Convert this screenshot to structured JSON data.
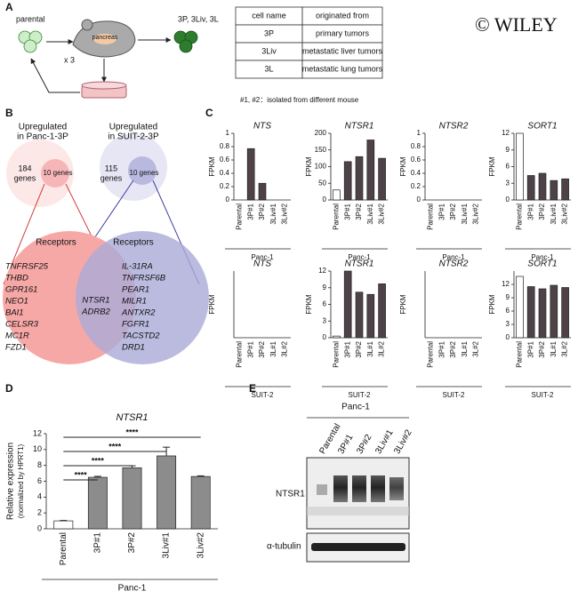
{
  "watermark": "© WILEY",
  "panel_a": {
    "label": "A",
    "parental": "parental",
    "organ": "pancreas",
    "repeat": "x 3",
    "derived": "3P, 3Liv, 3L",
    "table": {
      "header": [
        "cell name",
        "originated from"
      ],
      "rows": [
        [
          "3P",
          "primary tumors"
        ],
        [
          "3Liv",
          "metastatic liver tumors"
        ],
        [
          "3L",
          "metastatic lung tumors"
        ]
      ]
    },
    "note": "#1, #2：isolated from different mouse"
  },
  "panel_b": {
    "label": "B",
    "left": {
      "heading": [
        "Upregulated",
        "in Panc-1-3P"
      ],
      "total": [
        "184",
        "genes"
      ],
      "subset": "10 genes",
      "receptors": "Receptors",
      "genes": [
        "TNFRSF25",
        "THBD",
        "GPR161",
        "NEO1",
        "BAI1",
        "CELSR3",
        "MC1R",
        "FZD1"
      ]
    },
    "right": {
      "heading": [
        "Upregulated",
        "in SUIT-2-3P"
      ],
      "total": [
        "115",
        "genes"
      ],
      "subset": "10 genes",
      "receptors": "Receptors",
      "genes": [
        "IL-31RA",
        "TNFRSF6B",
        "PEAR1",
        "MILR1",
        "ANTXR2",
        "FGFR1",
        "TACSTD2",
        "DRD1"
      ]
    },
    "shared": [
      "NTSR1",
      "ADRB2"
    ]
  },
  "panel_c": {
    "label": "C"
  },
  "panel_d": {
    "label": "D"
  },
  "chart_data": [
    {
      "type": "bar",
      "title": "NTS",
      "y_label": "FPKM",
      "group": "Panc-1",
      "categories": [
        "Parental",
        "3P#1",
        "3P#2",
        "3Liv#1",
        "3Liv#2"
      ],
      "values": [
        0,
        0.77,
        0.25,
        0,
        0
      ],
      "colors": [
        "#ffffff",
        "#4e4248",
        "#4e4248",
        "#4e4248",
        "#4e4248"
      ],
      "ylim": [
        0,
        1
      ],
      "yticks": [
        0,
        0.2,
        0.4,
        0.6,
        0.8,
        1
      ]
    },
    {
      "type": "bar",
      "title": "NTSR1",
      "y_label": "FPKM",
      "group": "Panc-1",
      "categories": [
        "Parental",
        "3P#1",
        "3P#2",
        "3Liv#1",
        "3Liv#2"
      ],
      "values": [
        30,
        115,
        130,
        180,
        125
      ],
      "colors": [
        "#ffffff",
        "#4e4248",
        "#4e4248",
        "#4e4248",
        "#4e4248"
      ],
      "ylim": [
        0,
        200
      ],
      "yticks": [
        0,
        50,
        100,
        150,
        200
      ]
    },
    {
      "type": "bar",
      "title": "NTSR2",
      "y_label": "FPKM",
      "group": "Panc-1",
      "categories": [
        "Parental",
        "3P#1",
        "3P#2",
        "3Liv#1",
        "3Liv#2"
      ],
      "values": [
        0,
        0,
        0,
        0,
        0
      ],
      "colors": [
        "#ffffff",
        "#4e4248",
        "#4e4248",
        "#4e4248",
        "#4e4248"
      ],
      "ylim": [
        0,
        1
      ],
      "yticks": [
        0,
        0.2,
        0.4,
        0.6,
        0.8,
        1
      ]
    },
    {
      "type": "bar",
      "title": "SORT1",
      "y_label": "FPKM",
      "group": "Panc-1",
      "categories": [
        "Parental",
        "3P#1",
        "3P#2",
        "3Liv#1",
        "3Liv#2"
      ],
      "values": [
        12,
        4.4,
        4.8,
        3.5,
        3.8
      ],
      "colors": [
        "#ffffff",
        "#4e4248",
        "#4e4248",
        "#4e4248",
        "#4e4248"
      ],
      "ylim": [
        0,
        12
      ],
      "yticks": [
        0,
        3,
        6,
        9,
        12
      ]
    },
    {
      "type": "bar",
      "title": "NTS",
      "y_label": "FPKM",
      "group": "SUIT-2",
      "categories": [
        "Parental",
        "3P#1",
        "3P#2",
        "3L#1",
        "3L#2"
      ],
      "values": [
        0,
        0,
        0,
        0,
        0
      ],
      "colors": [
        "#ffffff",
        "#4e4248",
        "#4e4248",
        "#4e4248",
        "#4e4248"
      ],
      "ylim": [
        0,
        1
      ],
      "yticks": []
    },
    {
      "type": "bar",
      "title": "NTSR1",
      "y_label": "FPKM",
      "group": "SUIT-2",
      "categories": [
        "Parental",
        "3P#1",
        "3P#2",
        "3L#1",
        "3L#2"
      ],
      "values": [
        0.3,
        12,
        8.2,
        7.8,
        9.7
      ],
      "colors": [
        "#ffffff",
        "#4e4248",
        "#4e4248",
        "#4e4248",
        "#4e4248"
      ],
      "ylim": [
        0,
        12
      ],
      "yticks": [
        0,
        3,
        6,
        9,
        12
      ]
    },
    {
      "type": "bar",
      "title": "NTSR2",
      "y_label": "FPKM",
      "group": "SUIT-2",
      "categories": [
        "Parental",
        "3P#1",
        "3P#2",
        "3L#1",
        "3L#2"
      ],
      "values": [
        0,
        0,
        0,
        0,
        0
      ],
      "colors": [
        "#ffffff",
        "#4e4248",
        "#4e4248",
        "#4e4248",
        "#4e4248"
      ],
      "ylim": [
        0,
        1
      ],
      "yticks": []
    },
    {
      "type": "bar",
      "title": "SORT1",
      "y_label": "FPKM",
      "group": "SUIT-2",
      "categories": [
        "Parental",
        "3P#1",
        "3P#2",
        "3L#1",
        "3L#2"
      ],
      "values": [
        13.8,
        11.5,
        11,
        11.8,
        11.3
      ],
      "colors": [
        "#ffffff",
        "#4e4248",
        "#4e4248",
        "#4e4248",
        "#4e4248"
      ],
      "ylim": [
        0,
        15
      ],
      "yticks": [
        0,
        3,
        6,
        9,
        12
      ]
    },
    {
      "type": "bar",
      "title": "NTSR1",
      "y_label": "Relative expression",
      "y_sublabel": "(normalized by HPRT1)",
      "group": "Panc-1",
      "categories": [
        "Parental",
        "3P#1",
        "3P#2",
        "3Liv#1",
        "3Liv#2"
      ],
      "values": [
        1,
        6.5,
        7.7,
        9.2,
        6.6
      ],
      "errors": [
        0.05,
        0.12,
        0.25,
        1.1,
        0.08
      ],
      "colors": [
        "#ffffff",
        "#8c8c8c",
        "#8c8c8c",
        "#8c8c8c",
        "#8c8c8c"
      ],
      "ylim": [
        0,
        12
      ],
      "yticks": [
        0,
        2,
        4,
        6,
        8,
        10,
        12
      ],
      "comparisons": [
        {
          "label": "****",
          "pair": [
            0,
            1
          ]
        },
        {
          "label": "****",
          "pair": [
            0,
            2
          ]
        },
        {
          "label": "****",
          "pair": [
            0,
            3
          ]
        },
        {
          "label": "****",
          "pair": [
            0,
            4
          ]
        }
      ]
    }
  ],
  "panel_e": {
    "label": "E",
    "group": "Panc-1",
    "lanes": [
      "Parental",
      "3P#1",
      "3P#2",
      "3Liv#1",
      "3Liv#2"
    ],
    "bands": [
      "NTSR1",
      "α-tubulin"
    ]
  }
}
